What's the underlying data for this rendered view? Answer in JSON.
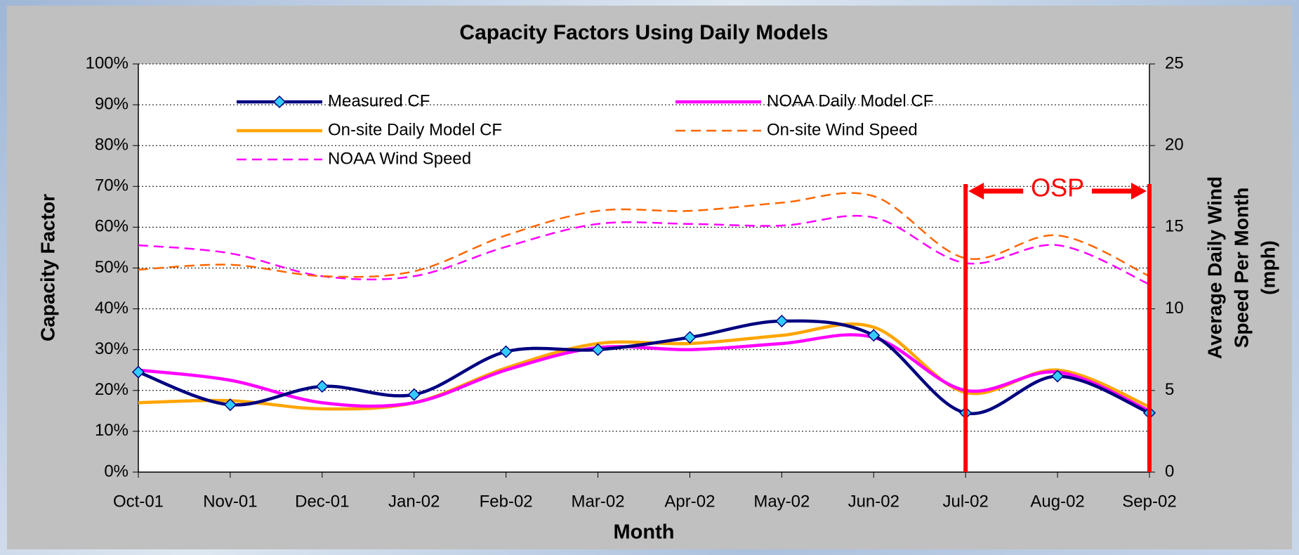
{
  "chart_data": {
    "type": "line",
    "title": "Capacity Factors Using Daily Models",
    "xlabel": "Month",
    "ylabel": "Capacity Factor",
    "y2label": [
      "Average Daily Wind",
      "Speed Per Month",
      "(mph)"
    ],
    "categories": [
      "Oct-01",
      "Nov-01",
      "Dec-01",
      "Jan-02",
      "Feb-02",
      "Mar-02",
      "Apr-02",
      "May-02",
      "Jun-02",
      "Jul-02",
      "Aug-02",
      "Sep-02"
    ],
    "ylim": [
      0,
      100
    ],
    "yticks": [
      {
        "value": 0,
        "label": "0%"
      },
      {
        "value": 10,
        "label": "10%"
      },
      {
        "value": 20,
        "label": "20%"
      },
      {
        "value": 30,
        "label": "30%"
      },
      {
        "value": 40,
        "label": "40%"
      },
      {
        "value": 50,
        "label": "50%"
      },
      {
        "value": 60,
        "label": "60%"
      },
      {
        "value": 70,
        "label": "70%"
      },
      {
        "value": 80,
        "label": "80%"
      },
      {
        "value": 90,
        "label": "90%"
      },
      {
        "value": 100,
        "label": "100%"
      }
    ],
    "y2lim": [
      0,
      25
    ],
    "y2ticks": [
      0,
      5,
      10,
      15,
      20,
      25
    ],
    "grid": true,
    "series": [
      {
        "name": "Measured CF",
        "color": "#000080",
        "marker": "diamond",
        "marker_color": "#33ccff",
        "values": [
          24.5,
          16.5,
          21,
          19,
          29.5,
          30,
          33,
          37,
          33.5,
          14.5,
          23.5,
          14.5
        ]
      },
      {
        "name": "NOAA Daily Model CF",
        "color": "#ff00ff",
        "values": [
          25,
          22.5,
          17,
          17,
          25,
          30.5,
          30,
          31.5,
          33,
          20,
          24.5,
          15
        ]
      },
      {
        "name": "On-site Daily Model CF",
        "color": "#ffa500",
        "values": [
          17,
          17.5,
          15.5,
          17,
          25.5,
          31.5,
          31.5,
          33.5,
          35.5,
          19.5,
          25,
          16
        ]
      },
      {
        "name": "On-site Wind Speed",
        "color": "#ff6600",
        "dashed": true,
        "axis": "y2",
        "values": [
          12.4,
          12.7,
          12.0,
          12.3,
          14.5,
          16.0,
          16.0,
          16.5,
          16.9,
          13.1,
          14.5,
          12.0
        ]
      },
      {
        "name": "NOAA Wind Speed",
        "color": "#ff00ff",
        "dashed": true,
        "axis": "y2",
        "values": [
          13.9,
          13.4,
          12.0,
          12.0,
          13.8,
          15.2,
          15.2,
          15.1,
          15.6,
          12.8,
          13.9,
          11.5
        ]
      }
    ],
    "annotation": {
      "text": "OSP",
      "color": "#ff0000"
    }
  }
}
